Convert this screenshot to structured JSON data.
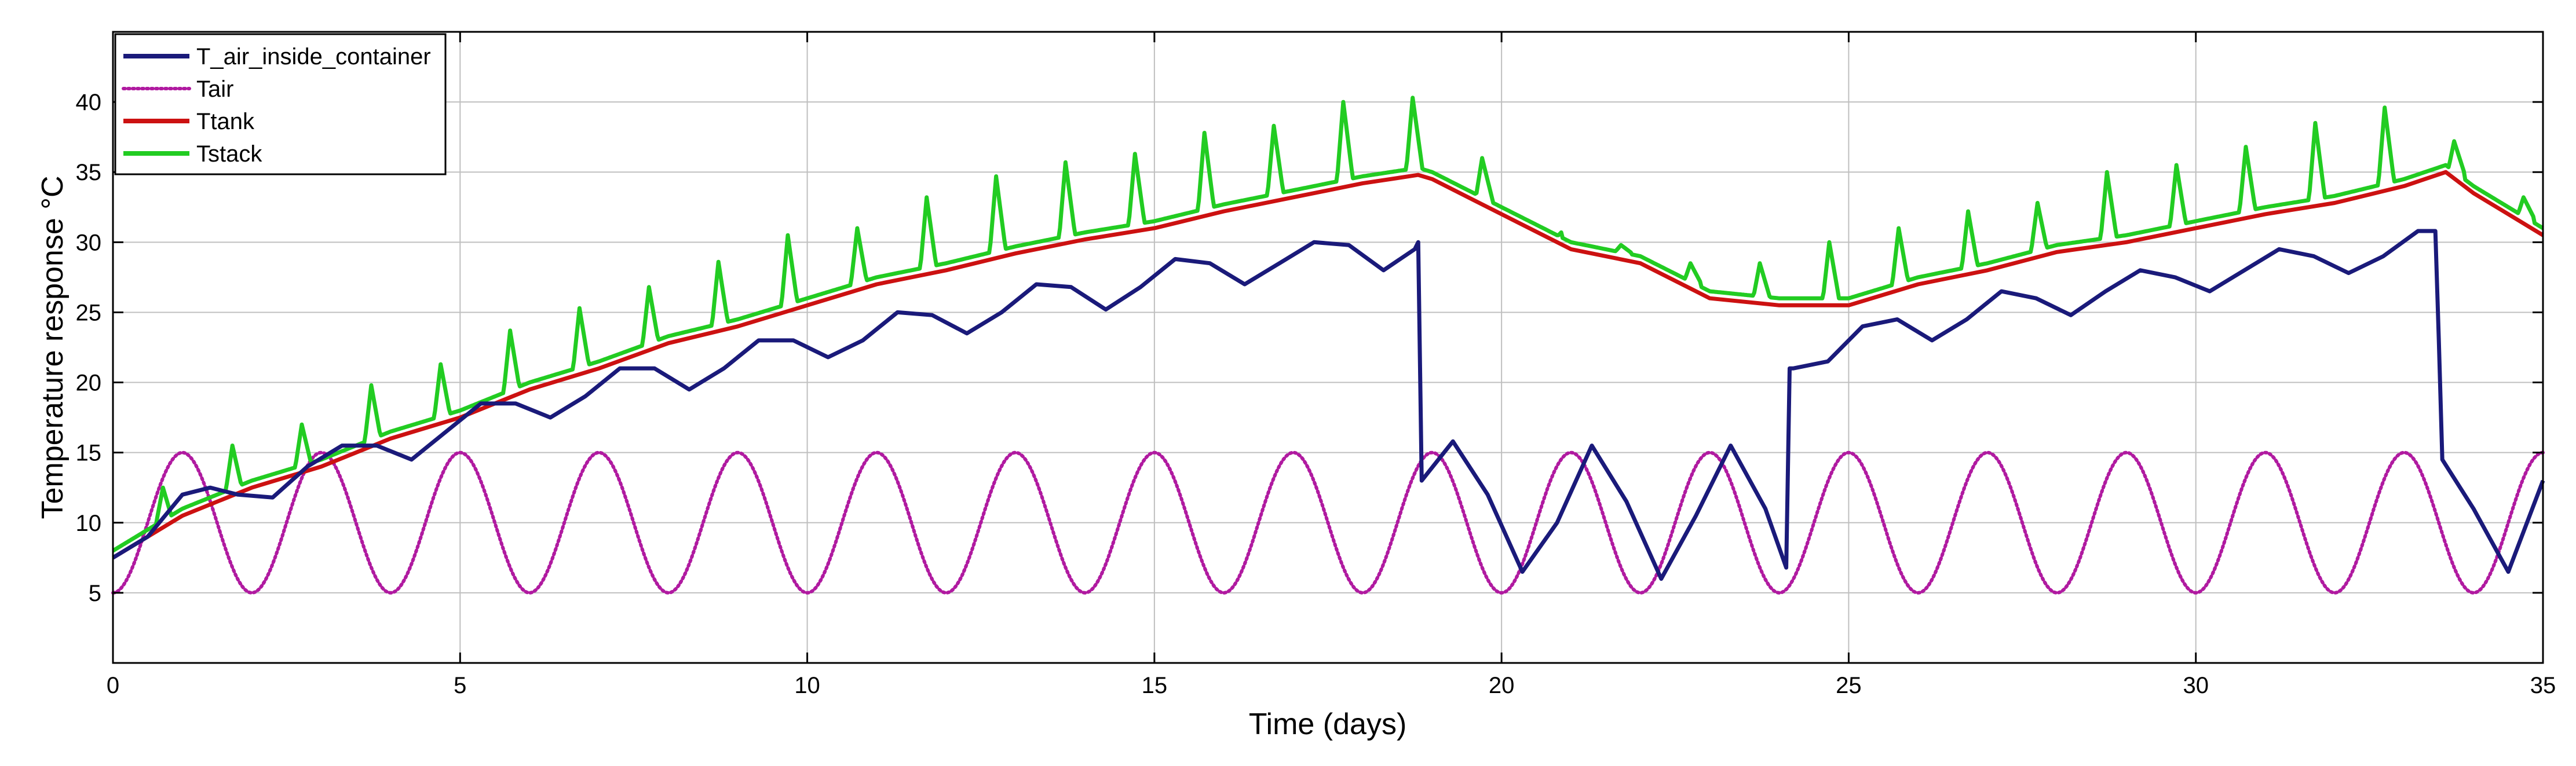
{
  "chart_data": {
    "type": "line",
    "title": "",
    "xlabel": "Time (days)",
    "ylabel": "Temperature response °C",
    "xlim": [
      0,
      35
    ],
    "ylim": [
      0,
      45
    ],
    "xticks": [
      0,
      5,
      10,
      15,
      20,
      25,
      30,
      35
    ],
    "yticks": [
      5,
      10,
      15,
      20,
      25,
      30,
      35,
      40
    ],
    "grid": true,
    "legend_position": "top-left",
    "series": [
      {
        "name": "T_air_inside_container",
        "color": "#1a1a7a",
        "style": "solid",
        "x": [
          0,
          0.5,
          1.0,
          1.4,
          1.8,
          2.3,
          2.8,
          3.3,
          3.8,
          4.3,
          4.8,
          5.3,
          5.8,
          6.3,
          6.8,
          7.3,
          7.8,
          8.3,
          8.8,
          9.3,
          9.8,
          10.3,
          10.8,
          11.3,
          11.8,
          12.3,
          12.8,
          13.3,
          13.8,
          14.3,
          14.8,
          15.3,
          15.8,
          16.3,
          16.8,
          17.3,
          17.8,
          18.3,
          18.75,
          18.8,
          18.85,
          19.3,
          19.8,
          20.3,
          20.8,
          21.3,
          21.8,
          22.3,
          22.8,
          23.3,
          23.8,
          24.1,
          24.15,
          24.2,
          24.7,
          25.2,
          25.7,
          26.2,
          26.7,
          27.2,
          27.7,
          28.2,
          28.7,
          29.2,
          29.7,
          30.2,
          30.7,
          31.2,
          31.7,
          32.2,
          32.7,
          33.2,
          33.45,
          33.5,
          33.55,
          34.0,
          34.5,
          35.0
        ],
        "values": [
          7.5,
          9.0,
          12.0,
          12.5,
          12.0,
          11.8,
          14.0,
          15.5,
          15.5,
          14.5,
          16.5,
          18.5,
          18.5,
          17.5,
          19.0,
          21.0,
          21.0,
          19.5,
          21.0,
          23.0,
          23.0,
          21.8,
          23.0,
          25.0,
          24.8,
          23.5,
          25.0,
          27.0,
          26.8,
          25.2,
          26.8,
          28.8,
          28.5,
          27.0,
          28.5,
          30.0,
          29.8,
          28.0,
          29.5,
          30.0,
          13.0,
          15.8,
          12.0,
          6.5,
          10.0,
          15.5,
          11.5,
          6.0,
          10.5,
          15.5,
          11.0,
          6.8,
          21.0,
          21.0,
          21.5,
          24.0,
          24.5,
          23.0,
          24.5,
          26.5,
          26.0,
          24.8,
          26.5,
          28.0,
          27.5,
          26.5,
          28.0,
          29.5,
          29.0,
          27.8,
          29.0,
          30.8,
          30.8,
          23.0,
          14.5,
          11.0,
          6.5,
          13.0
        ]
      },
      {
        "name": "Tair",
        "color": "#b01aa0",
        "style": "dotted",
        "function": "10 - 5*cos(2*pi*t/2)",
        "mean": 10,
        "amplitude": 5,
        "period_days": 2
      },
      {
        "name": "Ttank",
        "color": "#cc1111",
        "style": "solid",
        "x": [
          0,
          1,
          2,
          3,
          4,
          5,
          6,
          7,
          8,
          9,
          10,
          11,
          12,
          13,
          14,
          15,
          16,
          17,
          18,
          18.8,
          19,
          20,
          21,
          22,
          23,
          24,
          25,
          26,
          27,
          28,
          29,
          30,
          31,
          32,
          33,
          33.6,
          34,
          34.5,
          35
        ],
        "values": [
          7.5,
          10.5,
          12.5,
          14.0,
          16.0,
          17.5,
          19.5,
          21.0,
          22.8,
          24.0,
          25.5,
          27.0,
          28.0,
          29.2,
          30.2,
          31.0,
          32.2,
          33.2,
          34.2,
          34.8,
          34.5,
          32.0,
          29.5,
          28.5,
          26.0,
          25.5,
          25.5,
          27.0,
          28.0,
          29.3,
          30.0,
          31.0,
          32.0,
          32.8,
          34.0,
          35.0,
          33.5,
          32.0,
          30.5
        ]
      },
      {
        "name": "Tstack",
        "color": "#22cc22",
        "style": "solid",
        "base_offset": 0.5,
        "spike_days": [
          0.72,
          1.72,
          2.72,
          3.72,
          4.72,
          5.72,
          6.72,
          7.72,
          8.72,
          9.72,
          10.72,
          11.72,
          12.72,
          13.72,
          14.72,
          15.72,
          16.72,
          17.72,
          18.72,
          19.72,
          20.72,
          21.72,
          22.72,
          23.72,
          24.72,
          25.72,
          26.72,
          27.72,
          28.72,
          29.72,
          30.72,
          31.72,
          32.72,
          33.72,
          34.72
        ],
        "spike_peaks": [
          12.5,
          15.5,
          17.0,
          19.8,
          21.3,
          23.7,
          25.3,
          26.8,
          28.6,
          30.5,
          31.0,
          33.2,
          34.7,
          35.7,
          36.3,
          37.8,
          38.3,
          40.0,
          40.3,
          36.0,
          30.0,
          29.8,
          28.5,
          28.5,
          30.0,
          31.0,
          32.2,
          32.8,
          35.0,
          35.5,
          36.8,
          38.5,
          39.6,
          37.2,
          33.2
        ]
      }
    ]
  }
}
